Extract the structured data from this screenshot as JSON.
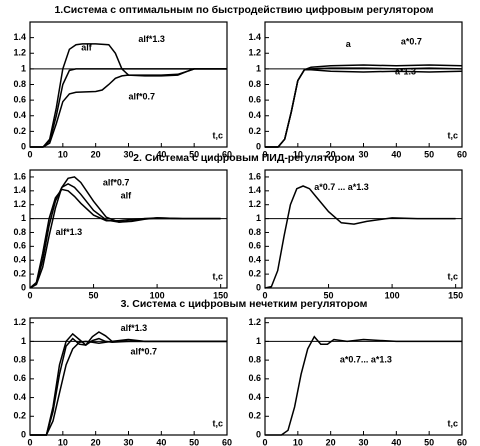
{
  "sections": [
    "1.Система с оптимальным по быстродействию цифровым регулятором",
    "2. Система с цифровым ПИД-регулятором",
    "3. Система с цифровым нечетким регулятором"
  ],
  "chart_data": [
    {
      "type": "line",
      "xlabel": "t,c",
      "xlim": [
        0,
        60
      ],
      "ylim": [
        0,
        1.6
      ],
      "xticks": [
        0,
        10,
        20,
        30,
        40,
        50,
        60
      ],
      "yticks": [
        0,
        0.2,
        0.4,
        0.6,
        0.8,
        1,
        1.2,
        1.4
      ],
      "hline": 1,
      "series": [
        {
          "name": "alf*1.3",
          "color": "#000000",
          "x": [
            0,
            4,
            6,
            8,
            10,
            12,
            14,
            16,
            20,
            24,
            26,
            28,
            30,
            35,
            40,
            45,
            48,
            50,
            55,
            60
          ],
          "values": [
            0,
            0,
            0.1,
            0.5,
            1.0,
            1.25,
            1.31,
            1.32,
            1.32,
            1.31,
            1.2,
            1.0,
            0.92,
            0.91,
            0.91,
            0.92,
            0.97,
            1.0,
            1.0,
            1.0
          ]
        },
        {
          "name": "alf",
          "color": "#000000",
          "x": [
            0,
            4,
            6,
            8,
            10,
            12,
            14,
            20,
            30,
            40,
            50,
            60
          ],
          "values": [
            0,
            0,
            0.08,
            0.4,
            0.8,
            0.98,
            1.0,
            1.0,
            1.0,
            1.0,
            1.0,
            1.0
          ]
        },
        {
          "name": "alf*0.7",
          "color": "#000000",
          "x": [
            0,
            4,
            6,
            8,
            10,
            12,
            14,
            20,
            22,
            24,
            26,
            28,
            30,
            40,
            45,
            48,
            50,
            55,
            60
          ],
          "values": [
            0,
            0,
            0.05,
            0.3,
            0.58,
            0.68,
            0.7,
            0.71,
            0.73,
            0.8,
            0.88,
            0.91,
            0.92,
            0.92,
            0.93,
            0.97,
            1.0,
            1.0,
            1.0
          ]
        }
      ]
    },
    {
      "type": "line",
      "xlabel": "t,c",
      "xlim": [
        0,
        60
      ],
      "ylim": [
        0,
        1.6
      ],
      "xticks": [
        0,
        10,
        20,
        30,
        40,
        50,
        60
      ],
      "yticks": [
        0,
        0.2,
        0.4,
        0.6,
        0.8,
        1,
        1.2,
        1.4
      ],
      "hline": 1,
      "series": [
        {
          "name": "a",
          "color": "#000000",
          "x": [
            0,
            4,
            6,
            8,
            10,
            12,
            14,
            20,
            30,
            40,
            50,
            60
          ],
          "values": [
            0,
            0,
            0.1,
            0.45,
            0.85,
            0.99,
            1.0,
            1.01,
            1.01,
            1.0,
            1.01,
            1.0
          ]
        },
        {
          "name": "a*0.7",
          "color": "#000000",
          "x": [
            0,
            4,
            6,
            8,
            10,
            12,
            14,
            20,
            30,
            40,
            50,
            60
          ],
          "values": [
            0,
            0,
            0.1,
            0.45,
            0.85,
            0.99,
            1.02,
            1.04,
            1.05,
            1.04,
            1.05,
            1.04
          ]
        },
        {
          "name": "a*1.3",
          "color": "#000000",
          "x": [
            0,
            4,
            6,
            8,
            10,
            12,
            14,
            20,
            30,
            40,
            50,
            60
          ],
          "values": [
            0,
            0,
            0.1,
            0.45,
            0.85,
            0.99,
            0.99,
            0.97,
            0.96,
            0.97,
            0.96,
            0.97
          ]
        }
      ]
    },
    {
      "type": "line",
      "xlabel": "t,c",
      "xlim": [
        0,
        155
      ],
      "ylim": [
        0,
        1.7
      ],
      "xticks": [
        0,
        50,
        100,
        150
      ],
      "yticks": [
        0,
        0.2,
        0.4,
        0.6,
        0.8,
        1,
        1.2,
        1.4,
        1.6
      ],
      "hline": 1,
      "series": [
        {
          "name": "alf*0.7",
          "color": "#000000",
          "x": [
            0,
            5,
            10,
            15,
            20,
            25,
            30,
            35,
            40,
            50,
            60,
            70,
            80,
            90,
            100,
            120,
            150
          ],
          "values": [
            0,
            0.05,
            0.3,
            0.75,
            1.15,
            1.45,
            1.58,
            1.6,
            1.52,
            1.25,
            1.02,
            0.95,
            0.96,
            0.99,
            1.01,
            1.0,
            1.0
          ]
        },
        {
          "name": "alf",
          "color": "#000000",
          "x": [
            0,
            5,
            10,
            15,
            20,
            25,
            30,
            35,
            40,
            50,
            60,
            70,
            80,
            90,
            100,
            120,
            150
          ],
          "values": [
            0,
            0.06,
            0.4,
            0.9,
            1.25,
            1.45,
            1.5,
            1.45,
            1.35,
            1.12,
            0.98,
            0.95,
            0.97,
            1.0,
            1.01,
            1.0,
            1.0
          ]
        },
        {
          "name": "alf*1.3",
          "color": "#000000",
          "x": [
            0,
            5,
            10,
            15,
            20,
            25,
            30,
            35,
            40,
            50,
            60,
            70,
            80,
            90,
            100,
            120,
            150
          ],
          "values": [
            0,
            0.08,
            0.5,
            1.0,
            1.3,
            1.42,
            1.4,
            1.32,
            1.22,
            1.05,
            0.97,
            0.97,
            0.99,
            1.0,
            1.0,
            1.0,
            1.0
          ]
        }
      ]
    },
    {
      "type": "line",
      "xlabel": "t,c",
      "xlim": [
        0,
        155
      ],
      "ylim": [
        0,
        1.7
      ],
      "xticks": [
        0,
        50,
        100,
        150
      ],
      "yticks": [
        0,
        0.2,
        0.4,
        0.6,
        0.8,
        1,
        1.2,
        1.4,
        1.6
      ],
      "hline": 1,
      "series": [
        {
          "name": "a*0.7 ... a*1.3",
          "color": "#000000",
          "x": [
            0,
            5,
            10,
            15,
            20,
            25,
            30,
            35,
            40,
            50,
            60,
            70,
            80,
            100,
            120,
            150
          ],
          "values": [
            0,
            0.02,
            0.25,
            0.75,
            1.2,
            1.43,
            1.47,
            1.43,
            1.32,
            1.1,
            0.94,
            0.92,
            0.96,
            1.01,
            1.0,
            1.0
          ]
        }
      ]
    },
    {
      "type": "line",
      "xlabel": "t,c",
      "xlim": [
        0,
        60
      ],
      "ylim": [
        0,
        1.25
      ],
      "xticks": [
        0,
        10,
        20,
        30,
        40,
        50,
        60
      ],
      "yticks": [
        0,
        0.2,
        0.4,
        0.6,
        0.8,
        1,
        1.2
      ],
      "hline": 1,
      "series": [
        {
          "name": "alf*1.3",
          "color": "#000000",
          "x": [
            0,
            5,
            7,
            9,
            11,
            13,
            15,
            17,
            19,
            21,
            23,
            25,
            30,
            35,
            40,
            50,
            60
          ],
          "values": [
            0,
            0,
            0.3,
            0.75,
            1.0,
            1.08,
            1.02,
            0.96,
            1.05,
            1.1,
            1.06,
            1.0,
            1.02,
            1.0,
            1.0,
            1.0,
            1.0
          ]
        },
        {
          "color": "#000000",
          "x": [
            0,
            5,
            7,
            9,
            11,
            13,
            15,
            17,
            19,
            21,
            23,
            25,
            30,
            35,
            40,
            50,
            60
          ],
          "values": [
            0,
            0,
            0.25,
            0.65,
            0.95,
            1.03,
            0.97,
            0.96,
            1.01,
            1.03,
            1.0,
            0.99,
            1.0,
            1.0,
            1.0,
            1.0,
            1.0
          ]
        },
        {
          "name": "alf*0.7",
          "color": "#000000",
          "x": [
            0,
            5,
            7,
            9,
            11,
            13,
            15,
            17,
            19,
            21,
            23,
            25,
            30,
            35,
            40,
            50,
            60
          ],
          "values": [
            0,
            0,
            0.15,
            0.45,
            0.75,
            0.92,
            0.99,
            1.0,
            0.99,
            0.98,
            0.99,
            1.0,
            1.0,
            1.0,
            1.0,
            1.0,
            1.0
          ]
        }
      ]
    },
    {
      "type": "line",
      "xlabel": "t,c",
      "xlim": [
        0,
        60
      ],
      "ylim": [
        0,
        1.25
      ],
      "xticks": [
        0,
        10,
        20,
        30,
        40,
        50,
        60
      ],
      "yticks": [
        0,
        0.2,
        0.4,
        0.6,
        0.8,
        1,
        1.2
      ],
      "hline": 1,
      "series": [
        {
          "name": "a*0.7... a*1.3",
          "color": "#000000",
          "x": [
            0,
            5,
            7,
            9,
            11,
            13,
            15,
            17,
            19,
            21,
            25,
            30,
            40,
            50,
            60
          ],
          "values": [
            0,
            0,
            0.05,
            0.3,
            0.65,
            0.92,
            1.05,
            0.97,
            0.97,
            1.02,
            1.0,
            1.02,
            1.0,
            1.0,
            1.0
          ]
        }
      ]
    }
  ]
}
